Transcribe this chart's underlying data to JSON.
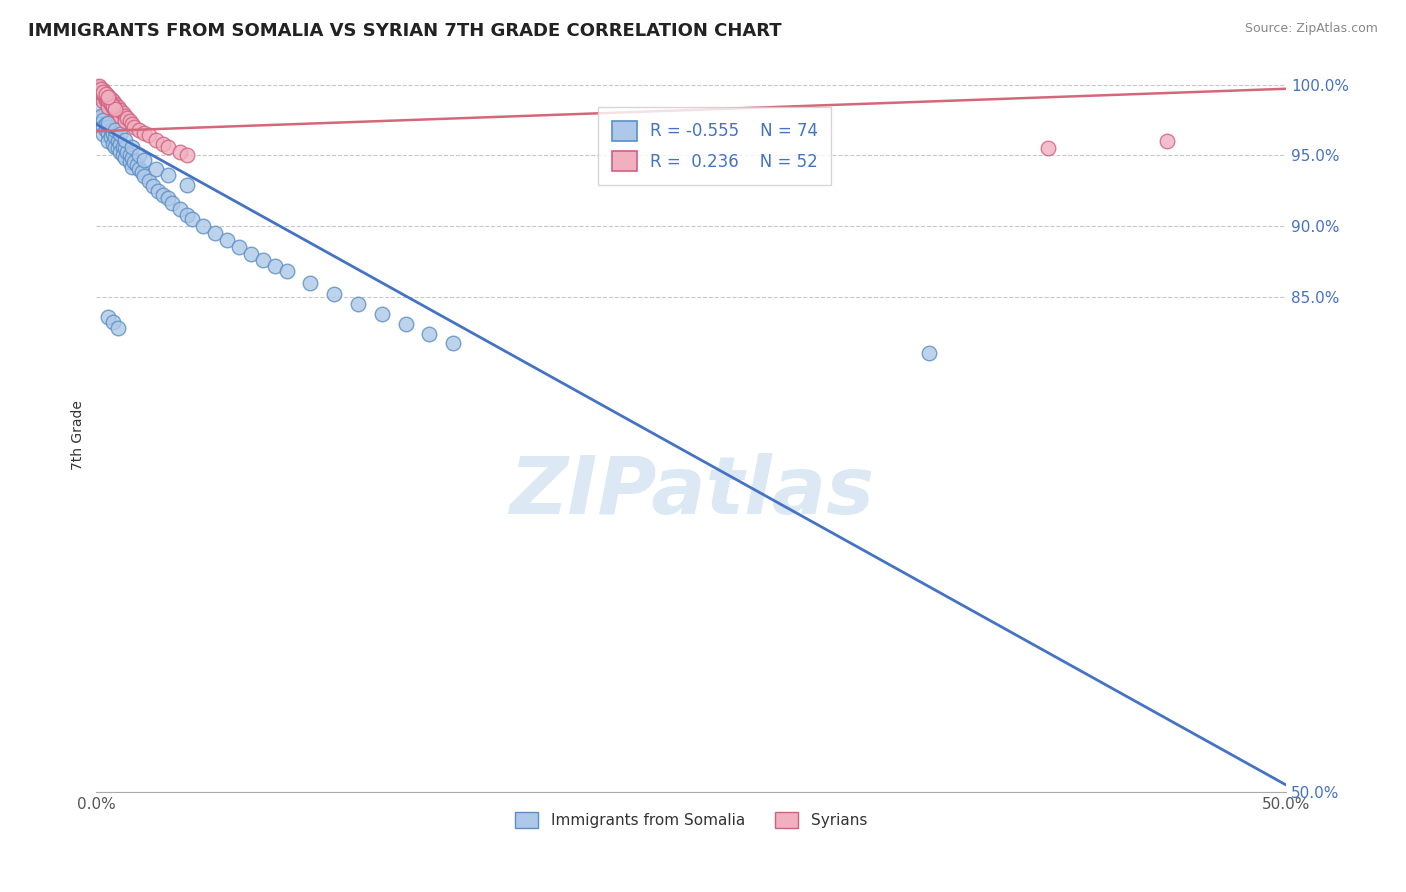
{
  "title": "IMMIGRANTS FROM SOMALIA VS SYRIAN 7TH GRADE CORRELATION CHART",
  "source_text": "Source: ZipAtlas.com",
  "ylabel": "7th Grade",
  "xlim": [
    0.0,
    0.5
  ],
  "ylim": [
    0.5,
    1.005
  ],
  "x_ticks": [
    0.0,
    0.5
  ],
  "x_tick_labels": [
    "0.0%",
    "50.0%"
  ],
  "y_ticks": [
    0.5,
    0.85,
    0.9,
    0.95,
    1.0
  ],
  "y_tick_labels": [
    "50.0%",
    "85.0%",
    "90.0%",
    "95.0%",
    "100.0%"
  ],
  "grid_color": "#c8c8c8",
  "background_color": "#ffffff",
  "legend_label1": "Immigrants from Somalia",
  "legend_label2": "Syrians",
  "somalia_fill_color": "#adc8e8",
  "somalia_edge_color": "#5b8ec4",
  "syria_fill_color": "#f0b0c0",
  "syria_edge_color": "#d06080",
  "somalia_line_color": "#4472c4",
  "syria_line_color": "#d4687a",
  "somalia_line_x0": 0.0,
  "somalia_line_y0": 0.972,
  "somalia_line_x1": 0.5,
  "somalia_line_y1": 0.505,
  "syria_line_x0": 0.0,
  "syria_line_y0": 0.967,
  "syria_line_x1": 0.5,
  "syria_line_y1": 0.997,
  "watermark_text": "ZIPatlas",
  "watermark_color": "#dde8f5",
  "somalia_x": [
    0.001,
    0.001,
    0.002,
    0.002,
    0.003,
    0.003,
    0.003,
    0.004,
    0.004,
    0.005,
    0.005,
    0.005,
    0.006,
    0.006,
    0.007,
    0.007,
    0.008,
    0.008,
    0.009,
    0.009,
    0.01,
    0.01,
    0.011,
    0.011,
    0.012,
    0.012,
    0.013,
    0.014,
    0.014,
    0.015,
    0.015,
    0.016,
    0.017,
    0.018,
    0.019,
    0.02,
    0.022,
    0.024,
    0.026,
    0.028,
    0.03,
    0.032,
    0.035,
    0.038,
    0.04,
    0.045,
    0.05,
    0.055,
    0.06,
    0.065,
    0.07,
    0.075,
    0.08,
    0.09,
    0.1,
    0.11,
    0.12,
    0.13,
    0.14,
    0.15,
    0.005,
    0.008,
    0.01,
    0.012,
    0.015,
    0.018,
    0.02,
    0.025,
    0.03,
    0.038,
    0.005,
    0.007,
    0.009,
    0.35
  ],
  "somalia_y": [
    0.982,
    0.976,
    0.978,
    0.972,
    0.975,
    0.97,
    0.965,
    0.972,
    0.968,
    0.97,
    0.966,
    0.96,
    0.968,
    0.963,
    0.965,
    0.958,
    0.963,
    0.956,
    0.96,
    0.955,
    0.958,
    0.952,
    0.956,
    0.95,
    0.955,
    0.948,
    0.952,
    0.95,
    0.945,
    0.948,
    0.942,
    0.945,
    0.943,
    0.94,
    0.938,
    0.935,
    0.932,
    0.928,
    0.925,
    0.922,
    0.92,
    0.916,
    0.912,
    0.908,
    0.905,
    0.9,
    0.895,
    0.89,
    0.885,
    0.88,
    0.876,
    0.872,
    0.868,
    0.86,
    0.852,
    0.845,
    0.838,
    0.831,
    0.824,
    0.817,
    0.973,
    0.968,
    0.965,
    0.961,
    0.956,
    0.95,
    0.947,
    0.94,
    0.936,
    0.929,
    0.836,
    0.832,
    0.828,
    0.81
  ],
  "syria_x": [
    0.001,
    0.001,
    0.002,
    0.002,
    0.003,
    0.003,
    0.003,
    0.004,
    0.004,
    0.005,
    0.005,
    0.005,
    0.006,
    0.006,
    0.007,
    0.007,
    0.008,
    0.008,
    0.009,
    0.009,
    0.01,
    0.01,
    0.011,
    0.012,
    0.012,
    0.013,
    0.014,
    0.015,
    0.016,
    0.018,
    0.02,
    0.022,
    0.025,
    0.028,
    0.03,
    0.035,
    0.038,
    0.001,
    0.002,
    0.003,
    0.004,
    0.005,
    0.006,
    0.007,
    0.008,
    0.001,
    0.002,
    0.003,
    0.004,
    0.005,
    0.4,
    0.45
  ],
  "syria_y": [
    0.998,
    0.994,
    0.996,
    0.992,
    0.996,
    0.992,
    0.988,
    0.993,
    0.989,
    0.992,
    0.988,
    0.984,
    0.99,
    0.986,
    0.988,
    0.984,
    0.986,
    0.982,
    0.984,
    0.98,
    0.982,
    0.978,
    0.98,
    0.978,
    0.974,
    0.976,
    0.974,
    0.972,
    0.97,
    0.968,
    0.966,
    0.964,
    0.961,
    0.958,
    0.956,
    0.952,
    0.95,
    0.997,
    0.995,
    0.993,
    0.991,
    0.989,
    0.987,
    0.985,
    0.983,
    0.999,
    0.997,
    0.995,
    0.993,
    0.991,
    0.955,
    0.96
  ]
}
